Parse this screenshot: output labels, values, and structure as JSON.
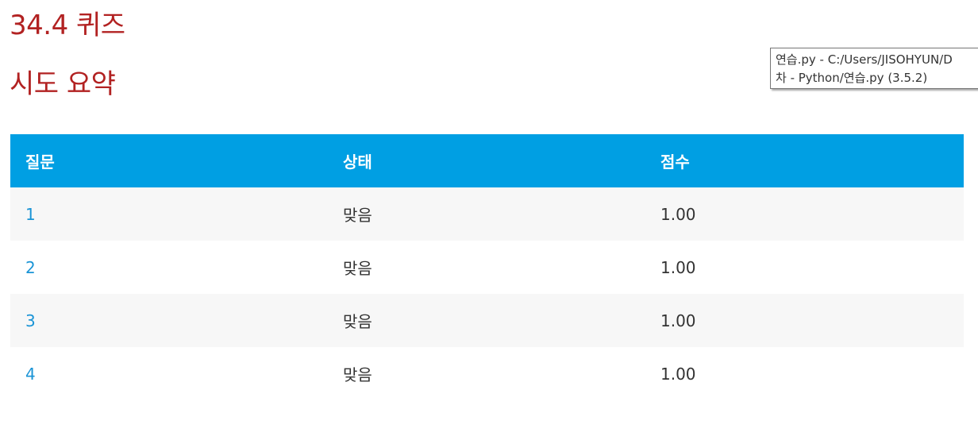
{
  "quiz": {
    "title": "34.4 퀴즈"
  },
  "summary": {
    "title": "시도 요약",
    "headers": {
      "question": "질문",
      "status": "상태",
      "score": "점수"
    },
    "rows": [
      {
        "question": "1",
        "status": "맞음",
        "score": "1.00"
      },
      {
        "question": "2",
        "status": "맞음",
        "score": "1.00"
      },
      {
        "question": "3",
        "status": "맞음",
        "score": "1.00"
      },
      {
        "question": "4",
        "status": "맞음",
        "score": "1.00"
      }
    ]
  },
  "tooltip": {
    "line1": "연습.py - C:/Users/JISOHYUN/D",
    "line2": "차 - Python/연습.py (3.5.2)"
  },
  "colors": {
    "heading": "#b22222",
    "header_bg": "#009fe3",
    "link": "#1a94d6",
    "stripe": "#f7f7f7"
  }
}
